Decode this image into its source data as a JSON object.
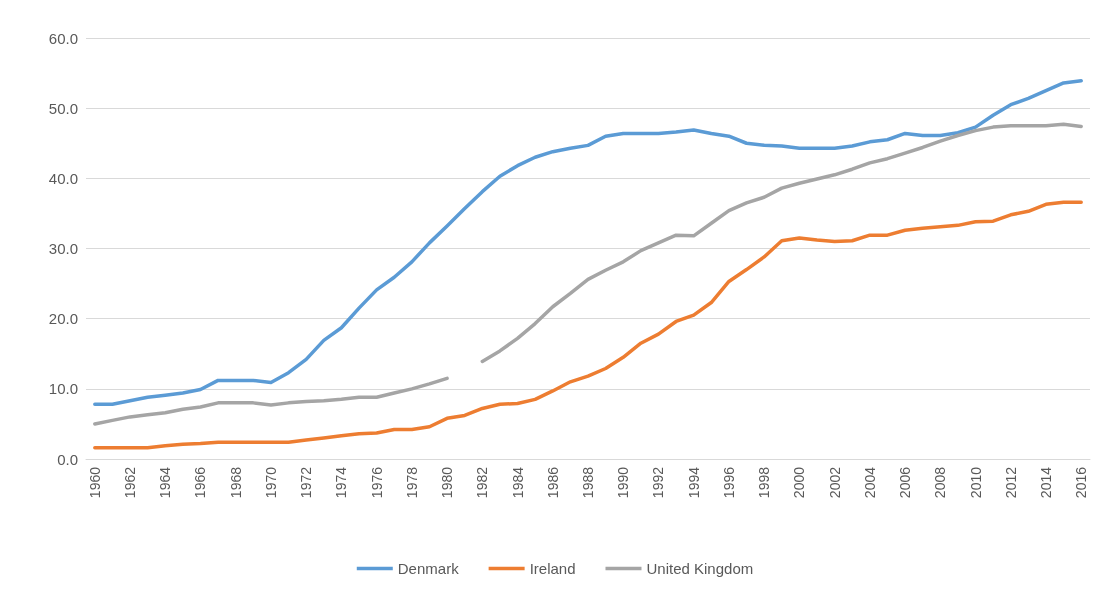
{
  "chart_data": {
    "type": "line",
    "categories": [
      "1960",
      null,
      "1962",
      null,
      "1964",
      null,
      "1966",
      null,
      "1968",
      null,
      "1970",
      null,
      "1972",
      null,
      "1974",
      null,
      "1976",
      null,
      "1978",
      null,
      "1980",
      null,
      "1982",
      null,
      "1984",
      null,
      "1986",
      null,
      "1988",
      null,
      "1990",
      null,
      "1992",
      null,
      "1994",
      null,
      "1996",
      null,
      "1998",
      null,
      "2000",
      null,
      "2002",
      null,
      "2004",
      null,
      "2006",
      null,
      "2008",
      null,
      "2010",
      null,
      "2012",
      null,
      "2014",
      null,
      "2016"
    ],
    "series": [
      {
        "name": "Denmark",
        "color": "#5b9bd5",
        "values": [
          7.8,
          7.8,
          8.3,
          8.8,
          9.1,
          9.4,
          9.9,
          11.2,
          11.2,
          11.2,
          10.9,
          12.3,
          14.2,
          16.9,
          18.7,
          21.5,
          24.1,
          25.9,
          28.1,
          30.8,
          33.2,
          35.7,
          38.1,
          40.3,
          41.8,
          43.0,
          43.8,
          44.3,
          44.7,
          46.0,
          46.4,
          46.4,
          46.4,
          46.6,
          46.9,
          46.4,
          46.0,
          45.0,
          44.7,
          44.6,
          44.3,
          44.3,
          44.3,
          44.6,
          45.2,
          45.5,
          46.4,
          46.1,
          46.1,
          46.5,
          47.3,
          49.0,
          50.5,
          51.4,
          52.5,
          53.6,
          53.9
        ]
      },
      {
        "name": "Ireland",
        "color": "#ed7d31",
        "values": [
          1.6,
          1.6,
          1.6,
          1.6,
          1.9,
          2.1,
          2.2,
          2.4,
          2.4,
          2.4,
          2.4,
          2.4,
          2.7,
          3.0,
          3.3,
          3.6,
          3.7,
          4.2,
          4.2,
          4.6,
          5.8,
          6.2,
          7.2,
          7.8,
          7.9,
          8.5,
          9.7,
          11.0,
          11.8,
          12.9,
          14.5,
          16.5,
          17.8,
          19.6,
          20.5,
          22.3,
          25.3,
          27.0,
          28.8,
          31.1,
          31.5,
          31.2,
          31.0,
          31.1,
          31.9,
          31.9,
          32.6,
          32.9,
          33.1,
          33.3,
          33.8,
          33.9,
          34.8,
          35.3,
          36.3,
          36.6,
          36.6
        ]
      },
      {
        "name": "United Kingdom",
        "color": "#a5a5a5",
        "values": [
          5.0,
          5.5,
          6.0,
          6.3,
          6.6,
          7.1,
          7.4,
          8.0,
          8.0,
          8.0,
          7.7,
          8.0,
          8.2,
          8.3,
          8.5,
          8.8,
          8.8,
          9.4,
          10.0,
          10.7,
          11.5,
          null,
          13.9,
          15.4,
          17.2,
          19.3,
          21.7,
          23.6,
          25.6,
          26.9,
          28.1,
          29.7,
          30.8,
          31.9,
          31.8,
          33.6,
          35.4,
          36.5,
          37.3,
          38.6,
          39.3,
          39.9,
          40.5,
          41.3,
          42.2,
          42.8,
          43.6,
          44.4,
          45.3,
          46.1,
          46.8,
          47.3,
          47.5,
          47.5,
          47.5,
          47.7,
          47.4
        ]
      }
    ],
    "ylim": [
      0,
      60
    ],
    "yticks": [
      {
        "value": 0,
        "label": "0.0"
      },
      {
        "value": 10,
        "label": "10.0"
      },
      {
        "value": 20,
        "label": "20.0"
      },
      {
        "value": 30,
        "label": "30.0"
      },
      {
        "value": 40,
        "label": "40.0"
      },
      {
        "value": 50,
        "label": "50.0"
      },
      {
        "value": 60,
        "label": "60.0"
      }
    ],
    "grid": "y",
    "legend": "bottom",
    "marker": "none",
    "line_style": "solid"
  }
}
